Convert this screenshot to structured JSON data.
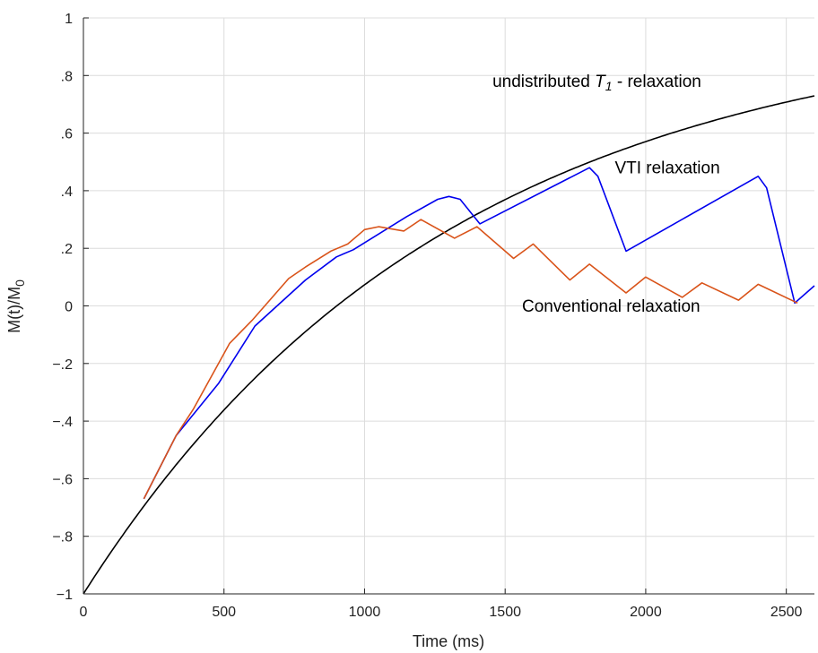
{
  "chart_data": {
    "type": "line",
    "title": "",
    "xlabel": "Time (ms)",
    "ylabel": "M(t)/M",
    "ylabel_subscript": "0",
    "xlim": [
      0,
      2600
    ],
    "ylim": [
      -1,
      1
    ],
    "xticks": [
      0,
      500,
      1000,
      1500,
      2000,
      2500
    ],
    "yticks": [
      -1,
      -0.8,
      -0.6,
      -0.4,
      -0.2,
      0,
      0.2,
      0.4,
      0.6,
      0.8,
      1
    ],
    "grid": true,
    "annotations": [
      {
        "id": "t1",
        "prefix": "undistributed ",
        "italic": "T",
        "italic_sub": "1",
        "suffix": " - relaxation",
        "x": 1455,
        "y": 0.76
      },
      {
        "id": "vti",
        "text": "VTI relaxation",
        "x": 1890,
        "y": 0.46
      },
      {
        "id": "conv",
        "text": "Conventional relaxation",
        "x": 1560,
        "y": -0.02
      }
    ],
    "series": [
      {
        "name": "undistributed T1 - relaxation",
        "color": "#000000",
        "function": "1-2*exp(-t/T1)",
        "T1": 1300
      },
      {
        "name": "VTI relaxation",
        "color": "#0000ee",
        "x": [
          215,
          330,
          480,
          610,
          790,
          900,
          960,
          1150,
          1260,
          1300,
          1340,
          1410,
          1800,
          1830,
          1930,
          2400,
          2430,
          2530,
          2600
        ],
        "y": [
          -0.67,
          -0.45,
          -0.27,
          -0.07,
          0.09,
          0.17,
          0.195,
          0.31,
          0.37,
          0.38,
          0.37,
          0.285,
          0.48,
          0.45,
          0.19,
          0.45,
          0.41,
          0.01,
          0.07
        ]
      },
      {
        "name": "Conventional relaxation",
        "color": "#d95319",
        "x": [
          215,
          330,
          390,
          520,
          600,
          730,
          790,
          880,
          940,
          1000,
          1050,
          1080,
          1140,
          1200,
          1320,
          1400,
          1530,
          1600,
          1730,
          1800,
          1930,
          2000,
          2130,
          2200,
          2330,
          2400,
          2540
        ],
        "y": [
          -0.67,
          -0.45,
          -0.36,
          -0.13,
          -0.05,
          0.095,
          0.135,
          0.19,
          0.215,
          0.265,
          0.275,
          0.27,
          0.26,
          0.3,
          0.235,
          0.275,
          0.165,
          0.215,
          0.09,
          0.145,
          0.045,
          0.1,
          0.03,
          0.08,
          0.02,
          0.075,
          0.01
        ]
      }
    ]
  }
}
